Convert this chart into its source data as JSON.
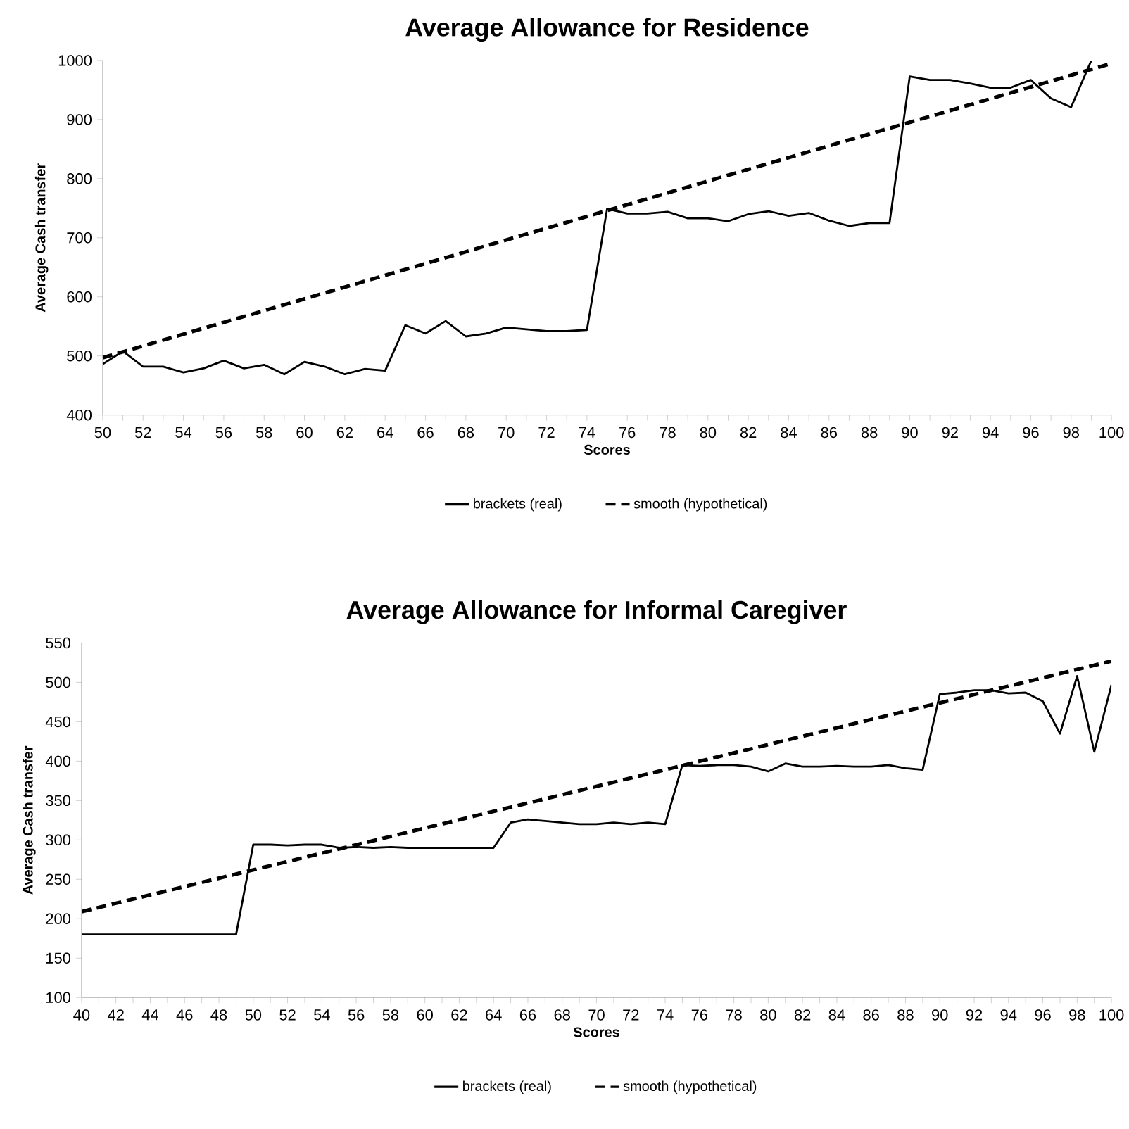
{
  "chart_data": [
    {
      "type": "line",
      "title": "Average Allowance for Residence",
      "xlabel": "Scores",
      "ylabel": "Average Cash transfer",
      "xlim": [
        50,
        100
      ],
      "ylim": [
        400,
        1000
      ],
      "yticks": [
        400,
        500,
        600,
        700,
        800,
        900,
        1000
      ],
      "xticks": [
        50,
        {
          "value": 51,
          "label": null
        },
        52,
        {
          "value": 53,
          "label": null
        },
        54,
        {
          "value": 55,
          "label": null
        },
        56,
        {
          "value": 57,
          "label": null
        },
        58,
        {
          "value": 59,
          "label": null
        },
        60,
        {
          "value": 61,
          "label": null
        },
        62,
        {
          "value": 63,
          "label": null
        },
        64,
        {
          "value": 65,
          "label": null
        },
        66,
        {
          "value": 67,
          "label": null
        },
        68,
        {
          "value": 69,
          "label": null
        },
        70,
        {
          "value": 71,
          "label": null
        },
        72,
        {
          "value": 73,
          "label": null
        },
        74,
        {
          "value": 75,
          "label": null
        },
        76,
        {
          "value": 77,
          "label": null
        },
        78,
        {
          "value": 79,
          "label": null
        },
        80,
        {
          "value": 81,
          "label": null
        },
        82,
        {
          "value": 83,
          "label": null
        },
        84,
        {
          "value": 85,
          "label": null
        },
        86,
        {
          "value": 87,
          "label": null
        },
        88,
        {
          "value": 89,
          "label": null
        },
        90,
        {
          "value": 91,
          "label": null
        },
        92,
        {
          "value": 93,
          "label": null
        },
        94,
        {
          "value": 95,
          "label": null
        },
        96,
        {
          "value": 97,
          "label": null
        },
        98,
        {
          "value": 99,
          "label": null
        },
        100
      ],
      "legend": "bottom",
      "marker": "none",
      "series": [
        {
          "name": "brackets (real)",
          "color": "#000000",
          "line_style": "solid",
          "x": [
            50,
            51,
            52,
            53,
            54,
            55,
            56,
            57,
            58,
            59,
            60,
            61,
            62,
            63,
            64,
            65,
            66,
            67,
            68,
            69,
            70,
            71,
            72,
            73,
            74,
            75,
            76,
            77,
            78,
            79,
            80,
            81,
            82,
            83,
            84,
            85,
            86,
            87,
            88,
            89,
            90,
            91,
            92,
            93,
            94,
            95,
            96,
            97,
            98,
            99
          ],
          "values": [
            486,
            508,
            482,
            482,
            472,
            479,
            492,
            479,
            485,
            469,
            490,
            482,
            469,
            478,
            475,
            552,
            538,
            559,
            533,
            538,
            548,
            545,
            542,
            542,
            544,
            749,
            741,
            741,
            744,
            733,
            733,
            728,
            740,
            745,
            737,
            742,
            729,
            720,
            725,
            725,
            973,
            967,
            967,
            961,
            954,
            954,
            967,
            936,
            921,
            1000
          ]
        },
        {
          "name": "smooth (hypothetical)",
          "color": "#000000",
          "line_style": "dashed",
          "x": [
            50,
            100
          ],
          "values": [
            497,
            995
          ]
        }
      ]
    },
    {
      "type": "line",
      "title": "Average Allowance for Informal Caregiver",
      "xlabel": "Scores",
      "ylabel": "Average Cash transfer",
      "xlim": [
        40,
        100
      ],
      "ylim": [
        100,
        550
      ],
      "yticks": [
        100,
        150,
        200,
        250,
        300,
        350,
        400,
        450,
        500,
        550
      ],
      "xticks": [
        40,
        {
          "value": 41,
          "label": null
        },
        42,
        {
          "value": 43,
          "label": null
        },
        44,
        {
          "value": 45,
          "label": null
        },
        46,
        {
          "value": 47,
          "label": null
        },
        48,
        {
          "value": 49,
          "label": null
        },
        50,
        {
          "value": 51,
          "label": null
        },
        52,
        {
          "value": 53,
          "label": null
        },
        54,
        {
          "value": 55,
          "label": null
        },
        56,
        {
          "value": 57,
          "label": null
        },
        58,
        {
          "value": 59,
          "label": null
        },
        60,
        {
          "value": 61,
          "label": null
        },
        62,
        {
          "value": 63,
          "label": null
        },
        64,
        {
          "value": 65,
          "label": null
        },
        66,
        {
          "value": 67,
          "label": null
        },
        68,
        {
          "value": 69,
          "label": null
        },
        70,
        {
          "value": 71,
          "label": null
        },
        72,
        {
          "value": 73,
          "label": null
        },
        74,
        {
          "value": 75,
          "label": null
        },
        76,
        {
          "value": 77,
          "label": null
        },
        78,
        {
          "value": 79,
          "label": null
        },
        80,
        {
          "value": 81,
          "label": null
        },
        82,
        {
          "value": 83,
          "label": null
        },
        84,
        {
          "value": 85,
          "label": null
        },
        86,
        {
          "value": 87,
          "label": null
        },
        88,
        {
          "value": 89,
          "label": null
        },
        90,
        {
          "value": 91,
          "label": null
        },
        92,
        {
          "value": 93,
          "label": null
        },
        94,
        {
          "value": 95,
          "label": null
        },
        96,
        {
          "value": 97,
          "label": null
        },
        98,
        {
          "value": 99,
          "label": null
        },
        100
      ],
      "legend": "bottom",
      "marker": "none",
      "series": [
        {
          "name": "brackets (real)",
          "color": "#000000",
          "line_style": "solid",
          "x": [
            40,
            41,
            42,
            43,
            44,
            45,
            46,
            47,
            48,
            49,
            50,
            51,
            52,
            53,
            54,
            55,
            56,
            57,
            58,
            59,
            60,
            61,
            62,
            63,
            64,
            65,
            66,
            67,
            68,
            69,
            70,
            71,
            72,
            73,
            74,
            75,
            76,
            77,
            78,
            79,
            80,
            81,
            82,
            83,
            84,
            85,
            86,
            87,
            88,
            89,
            90,
            91,
            92,
            93,
            94,
            95,
            96,
            97,
            98,
            99,
            100
          ],
          "values": [
            180,
            180,
            180,
            180,
            180,
            180,
            180,
            180,
            180,
            180,
            294,
            294,
            293,
            294,
            294,
            290,
            291,
            290,
            291,
            290,
            290,
            290,
            290,
            290,
            290,
            322,
            326,
            324,
            322,
            320,
            320,
            322,
            320,
            322,
            320,
            395,
            394,
            395,
            395,
            393,
            387,
            397,
            393,
            393,
            394,
            393,
            393,
            395,
            391,
            389,
            485,
            487,
            490,
            490,
            486,
            487,
            476,
            435,
            508,
            412,
            497
          ]
        },
        {
          "name": "smooth (hypothetical)",
          "color": "#000000",
          "line_style": "dashed",
          "x": [
            40,
            100
          ],
          "values": [
            209,
            527
          ]
        }
      ]
    }
  ]
}
